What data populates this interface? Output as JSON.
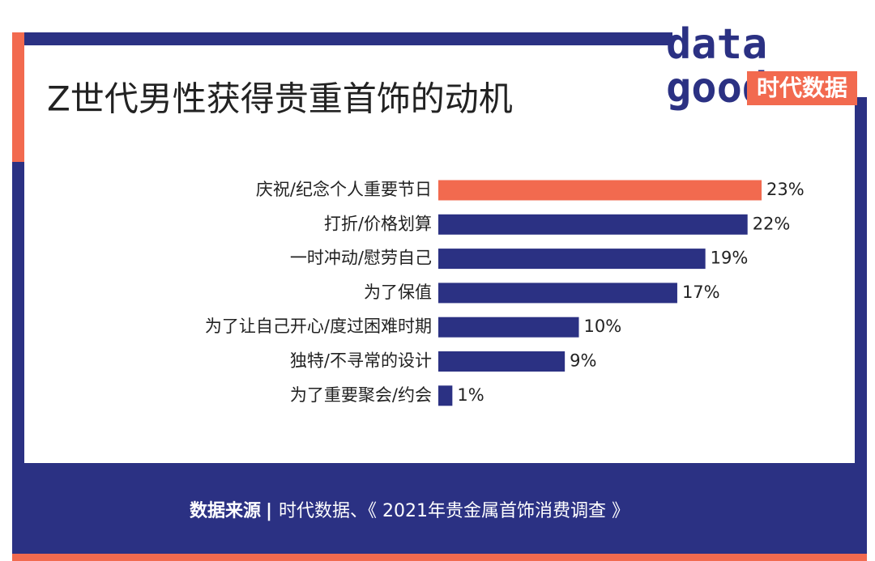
{
  "chart_data": {
    "type": "bar",
    "orientation": "horizontal",
    "title": "Z世代男性获得贵重首饰的动机",
    "categories": [
      "庆祝/纪念个人重要节日",
      "打折/价格划算",
      "一时冲动/慰劳自己",
      "为了保值",
      "为了让自己开心/度过困难时期",
      "独特/不寻常的设计",
      "为了重要聚会/约会"
    ],
    "values": [
      23,
      22,
      19,
      17,
      10,
      9,
      1
    ],
    "value_labels": [
      "23%",
      "22%",
      "19%",
      "17%",
      "10%",
      "9%",
      "1%"
    ],
    "colors": [
      "#f26a4f",
      "#2b3183",
      "#2b3183",
      "#2b3183",
      "#2b3183",
      "#2b3183",
      "#2b3183"
    ]
  },
  "logo": {
    "line1": "data",
    "line2": "good",
    "badge": "时代数据"
  },
  "footer": {
    "label": "数据来源",
    "separator": "|",
    "text": "时代数据、《 2021年贵金属首饰消费调查 》"
  }
}
